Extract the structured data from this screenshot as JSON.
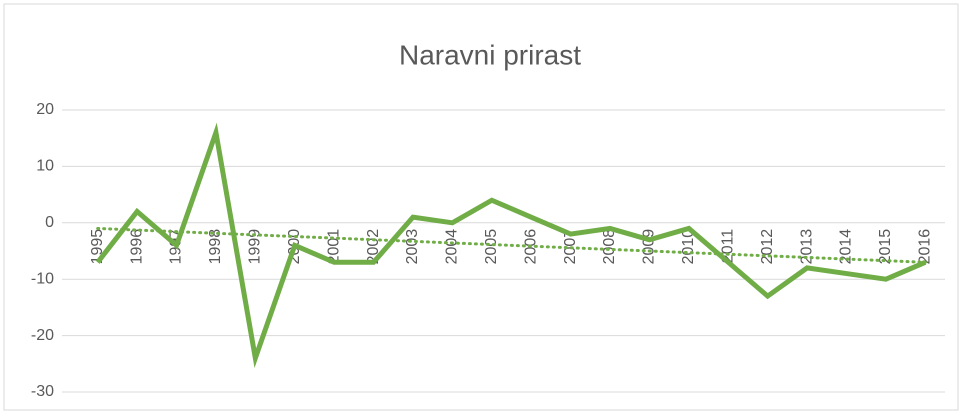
{
  "chart_data": {
    "type": "line",
    "title": "Naravni prirast",
    "categories": [
      "1995",
      "1996",
      "1997",
      "1998",
      "1999",
      "2000",
      "2001",
      "2002",
      "2003",
      "2004",
      "2005",
      "2006",
      "2007",
      "2008",
      "2009",
      "2010",
      "2011",
      "2012",
      "2013",
      "2014",
      "2015",
      "2016"
    ],
    "series": [
      {
        "color": "#70ad47",
        "values": [
          -7,
          2,
          -4,
          16,
          -24,
          -4,
          -7,
          -7,
          1,
          0,
          4,
          1,
          -2,
          -1,
          -3,
          -1,
          -7,
          -13,
          -8,
          -9,
          -10,
          -7
        ]
      }
    ],
    "trendline": {
      "color": "#70ad47",
      "style": "dotted",
      "values": [
        -1,
        -7
      ]
    },
    "ylim": [
      -30,
      20
    ],
    "yticks": [
      -30,
      -20,
      -10,
      0,
      10,
      20
    ],
    "grid": true
  }
}
